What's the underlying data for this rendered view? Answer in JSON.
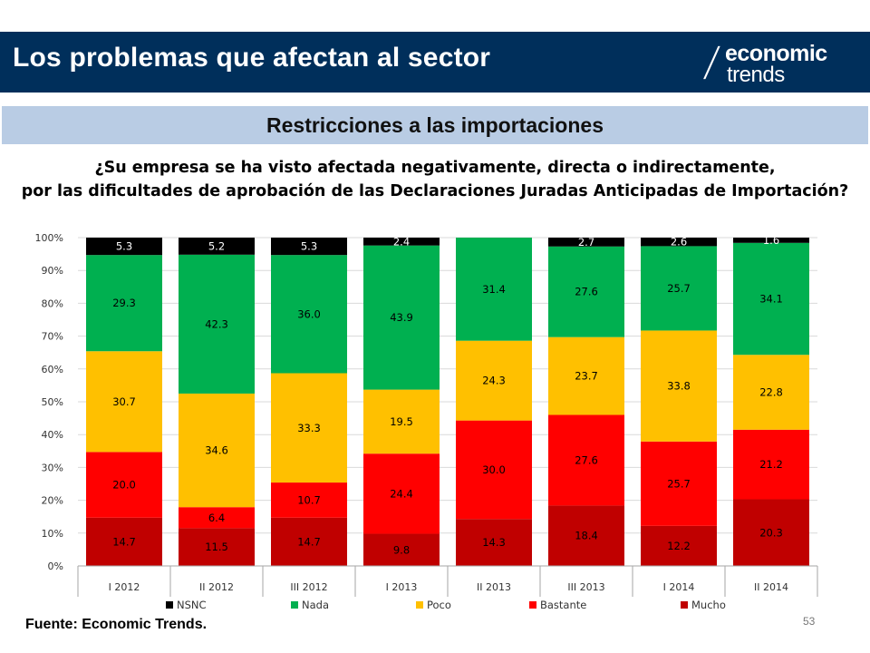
{
  "header": {
    "title": "Los problemas que afectan al sector"
  },
  "logo": {
    "line1": "economic",
    "line2": "trends"
  },
  "subheader": {
    "title": "Restricciones a las importaciones"
  },
  "question": {
    "line1": "¿Su empresa se ha visto afectada negativamente, directa o indirectamente,",
    "line2": "por las dificultades de aprobación de las Declaraciones Juradas Anticipadas de Importación?"
  },
  "source": "Fuente: Economic Trends.",
  "page_number": "53",
  "chart_data": {
    "type": "bar",
    "stacked": true,
    "percent": true,
    "categories": [
      "I 2012",
      "II 2012",
      "III 2012",
      "I 2013",
      "II 2013",
      "III 2013",
      "I 2014",
      "II 2014"
    ],
    "ylim": [
      0,
      100
    ],
    "yticks": [
      "0%",
      "10%",
      "20%",
      "30%",
      "40%",
      "50%",
      "60%",
      "70%",
      "80%",
      "90%",
      "100%"
    ],
    "grid": true,
    "legend": "bottom",
    "series": [
      {
        "name": "Mucho",
        "color": "#c00000",
        "label_color": "#000000",
        "values": [
          14.7,
          11.5,
          14.7,
          9.8,
          14.3,
          18.4,
          12.2,
          20.3
        ]
      },
      {
        "name": "Bastante",
        "color": "#ff0000",
        "label_color": "#000000",
        "values": [
          20.0,
          6.4,
          10.7,
          24.4,
          30.0,
          27.6,
          25.7,
          21.2
        ]
      },
      {
        "name": "Poco",
        "color": "#ffc000",
        "label_color": "#000000",
        "values": [
          30.7,
          34.6,
          33.3,
          19.5,
          24.3,
          23.7,
          33.8,
          22.8
        ]
      },
      {
        "name": "Nada",
        "color": "#00b050",
        "label_color": "#000000",
        "values": [
          29.3,
          42.3,
          36.0,
          43.9,
          31.4,
          27.6,
          25.7,
          34.1
        ]
      },
      {
        "name": "NSNC",
        "color": "#000000",
        "label_color": "#ffffff",
        "values": [
          5.3,
          5.2,
          5.3,
          2.4,
          null,
          2.7,
          2.6,
          1.6
        ]
      }
    ],
    "legend_order": [
      "NSNC",
      "Nada",
      "Poco",
      "Bastante",
      "Mucho"
    ]
  }
}
